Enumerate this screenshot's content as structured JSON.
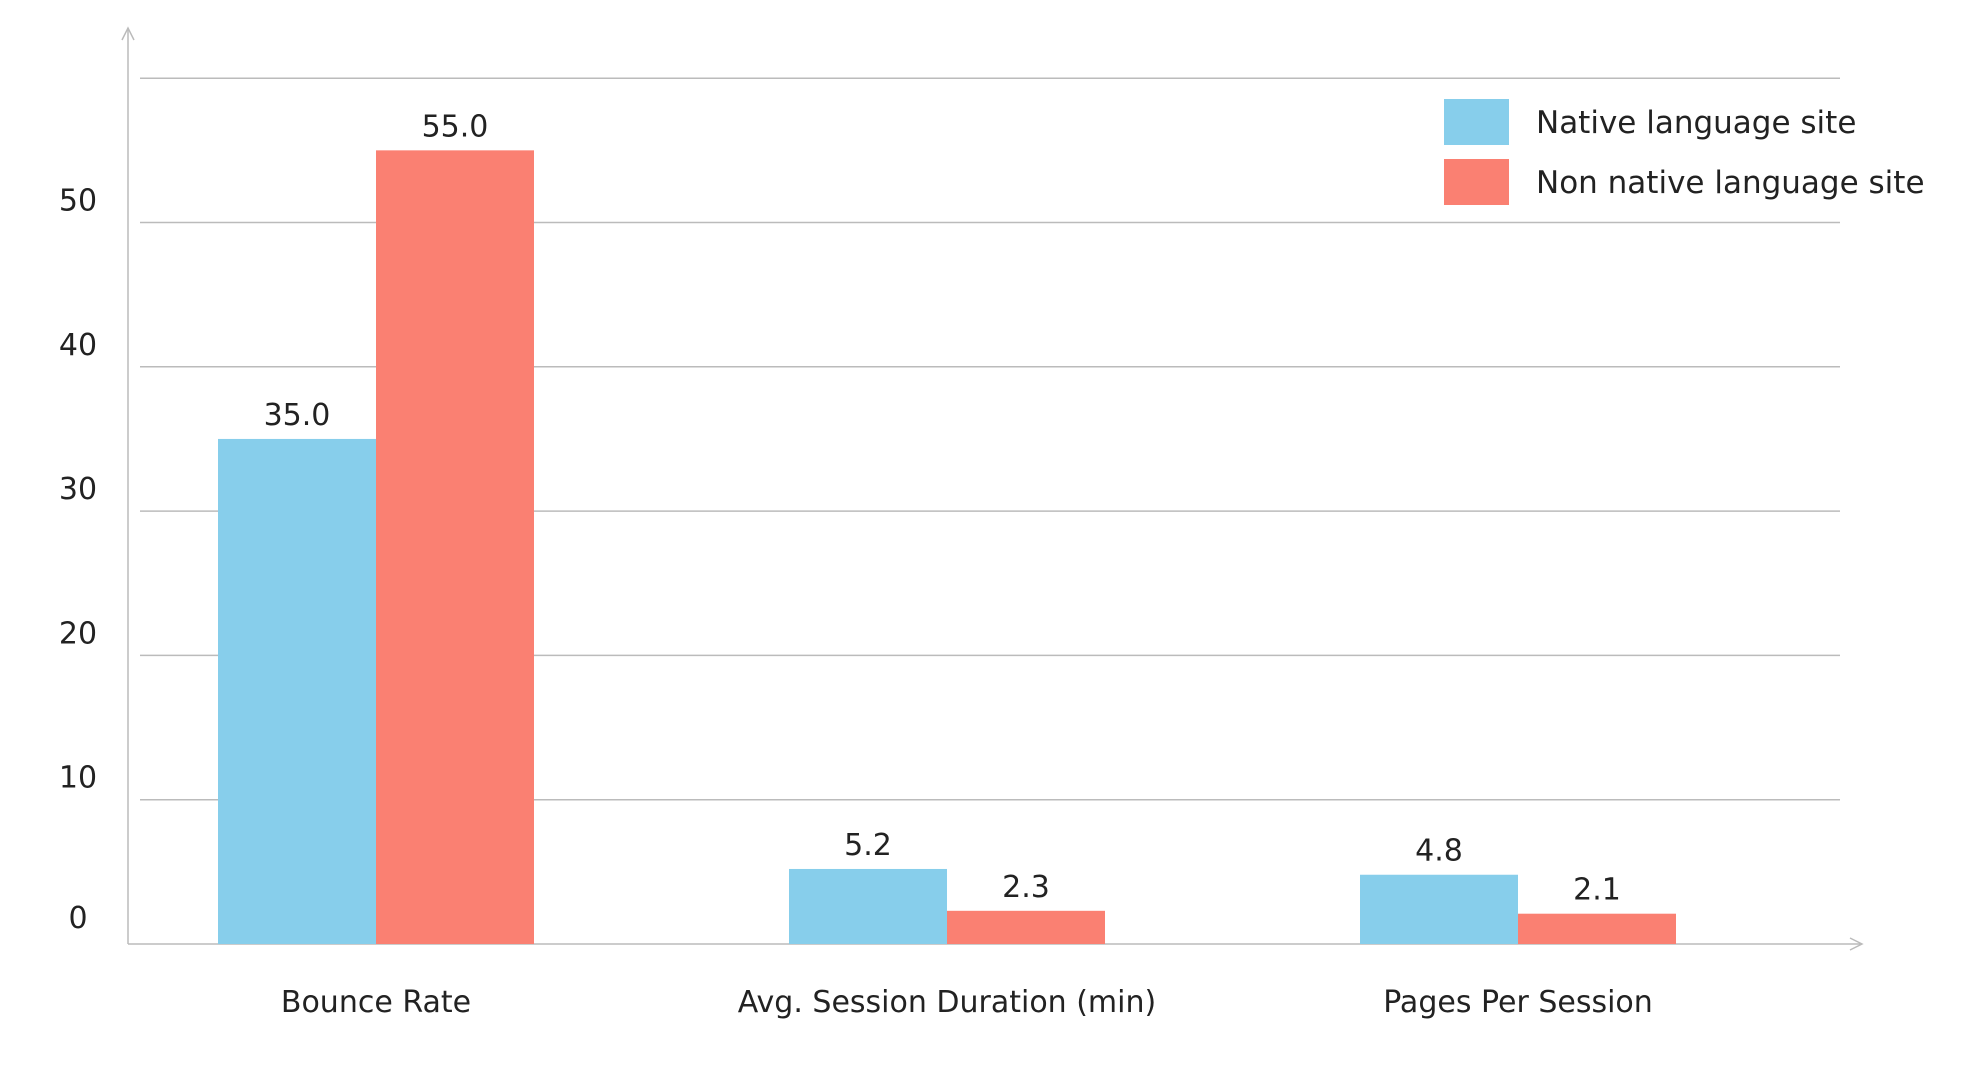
{
  "chart_data": {
    "type": "bar",
    "title": "",
    "xlabel": "",
    "ylabel": "",
    "categories": [
      "Bounce Rate",
      "Avg. Session Duration (min)",
      "Pages Per Session"
    ],
    "series": [
      {
        "name": "Native language site",
        "values": [
          35.0,
          5.2,
          4.8
        ],
        "value_labels": [
          "35.0",
          "5.2",
          "4.8"
        ],
        "color": "#87CEEB"
      },
      {
        "name": "Non native language site",
        "values": [
          55.0,
          2.3,
          2.1
        ],
        "value_labels": [
          "55.0",
          "2.3",
          "2.1"
        ],
        "color": "#FA8072"
      }
    ],
    "ylim": [
      0,
      60
    ],
    "yticks": [
      0,
      10,
      20,
      30,
      40,
      50
    ],
    "ytick_labels": [
      "0",
      "10",
      "20",
      "30",
      "40",
      "50"
    ],
    "grid": true,
    "legend_position": "top-right",
    "axis_color": "#bbbbbb",
    "grid_color": "#bbbbbb"
  }
}
